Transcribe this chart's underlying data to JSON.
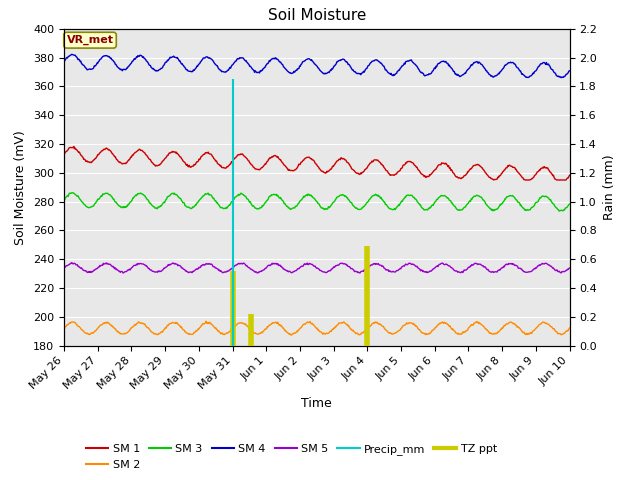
{
  "title": "Soil Moisture",
  "xlabel": "Time",
  "ylabel_left": "Soil Moisture (mV)",
  "ylabel_right": "Rain (mm)",
  "ylim_left": [
    180,
    400
  ],
  "ylim_right": [
    0.0,
    2.2
  ],
  "yticks_left": [
    180,
    200,
    220,
    240,
    260,
    280,
    300,
    320,
    340,
    360,
    380,
    400
  ],
  "yticks_right": [
    0.0,
    0.2,
    0.4,
    0.6,
    0.8,
    1.0,
    1.2,
    1.4,
    1.6,
    1.8,
    2.0,
    2.2
  ],
  "bg_color": "#e8e8e8",
  "fig_color": "#ffffff",
  "annotation_text": "VR_met",
  "annotation_color": "#8b0000",
  "annotation_bg": "#ffffcc",
  "sm1_color": "#cc0000",
  "sm2_color": "#ff8c00",
  "sm3_color": "#00cc00",
  "sm4_color": "#0000cc",
  "sm5_color": "#9900cc",
  "precip_color": "#00cccc",
  "tzppt_color": "#cccc00",
  "n_days": 15,
  "tick_labels": [
    "May 26",
    "May 27",
    "May 28",
    "May 29",
    "May 30",
    "May 31",
    "Jun 1",
    "Jun 2",
    "Jun 3",
    "Jun 4",
    "Jun 5",
    "Jun 6",
    "Jun 7",
    "Jun 8",
    "Jun 9",
    "Jun 10"
  ],
  "legend_entries": [
    "SM 1",
    "SM 2",
    "SM 3",
    "SM 4",
    "SM 5",
    "Precip_mm",
    "TZ ppt"
  ]
}
